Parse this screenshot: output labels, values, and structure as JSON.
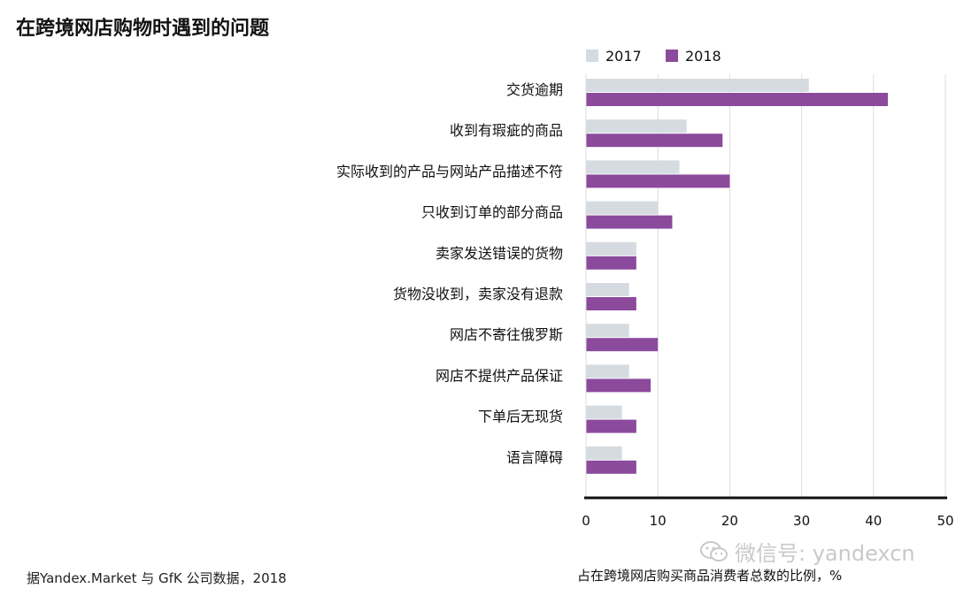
{
  "title": "在跨境网店购物时遇到的问题",
  "source": "据Yandex.Market 与 GfK 公司数据，2018",
  "unit_note": "占在跨境网店购买商品消费者总数的比例，%",
  "watermark": "微信号: yandexcn",
  "colors": {
    "s2017": "#d5dbe1",
    "s2018": "#8b4a9c",
    "grid": "#dcdcdc",
    "axis": "#111111"
  },
  "chart_data": {
    "type": "bar",
    "orientation": "horizontal",
    "categories": [
      "交货逾期",
      "收到有瑕疵的商品",
      "实际收到的产品与网站产品描述不符",
      "只收到订单的部分商品",
      "卖家发送错误的货物",
      "货物没收到，卖家没有退款",
      "网店不寄往俄罗斯",
      "网店不提供产品保证",
      "下单后无现货",
      "语言障碍"
    ],
    "series": [
      {
        "name": "2017",
        "values": [
          31,
          14,
          13,
          10,
          7,
          6,
          6,
          6,
          5,
          5
        ]
      },
      {
        "name": "2018",
        "values": [
          42,
          19,
          20,
          12,
          7,
          7,
          10,
          9,
          7,
          7
        ]
      }
    ],
    "xlim": [
      0,
      50
    ],
    "xticks": [
      "0",
      "10",
      "20",
      "30",
      "40",
      "50"
    ],
    "grid": true,
    "legend": "top"
  }
}
